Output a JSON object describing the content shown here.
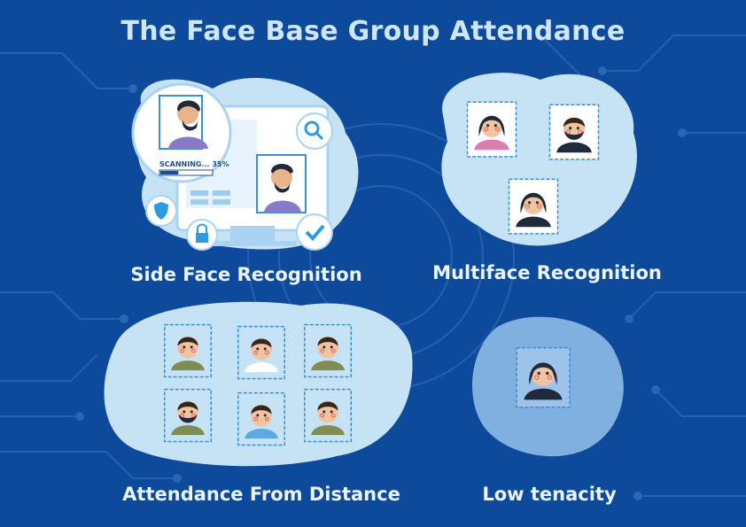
{
  "title": "The Face Base Group Attendance",
  "panels": {
    "side_face": {
      "caption": "Side Face Recognition",
      "scan_text": "SCANNING... 35%",
      "scan_progress": 0.35
    },
    "multiface": {
      "caption": "Multiface Recognition"
    },
    "distance": {
      "caption": "Attendance From Distance"
    },
    "low_tenacity": {
      "caption": "Low tenacity"
    }
  },
  "colors": {
    "background": "#0d4a9c",
    "blob": "#c6e3f6",
    "accent": "#2b9ce0",
    "title": "#cfe6f8"
  }
}
